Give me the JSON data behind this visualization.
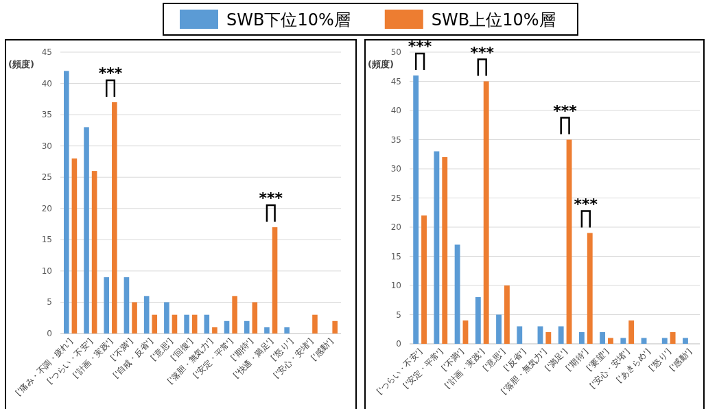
{
  "chart_data": [
    {
      "type": "bar",
      "ylabel": "(頻度)",
      "legend": "top",
      "grid": "y",
      "ylim": [
        0,
        45
      ],
      "yticks": [
        0,
        5,
        10,
        15,
        20,
        25,
        30,
        35,
        40,
        45
      ],
      "categories": [
        "['痛み・不調・疲れ']",
        "['つらい・不安']",
        "['計画・実践']",
        "['不満']",
        "['自戒・反省']",
        "['意思']",
        "['回復']",
        "['落胆・無気力']",
        "['安定・平常']",
        "['期待']",
        "['快適・満足']",
        "['怒り']",
        "['安心・安堵']",
        "['感動']"
      ],
      "series": [
        {
          "name": "SWB下位10%層",
          "color": "#5b9bd5",
          "values": [
            42,
            33,
            9,
            9,
            6,
            5,
            3,
            3,
            2,
            2,
            1,
            1,
            0,
            0
          ]
        },
        {
          "name": "SWB上位10%層",
          "color": "#ed7d31",
          "values": [
            28,
            26,
            37,
            5,
            3,
            3,
            3,
            1,
            6,
            5,
            17,
            0,
            3,
            2
          ]
        }
      ],
      "annotations": [
        {
          "text": "***",
          "x": "['計画・実践']",
          "y": 37
        },
        {
          "text": "***",
          "x": "['快適・満足']",
          "y": 17
        }
      ]
    },
    {
      "type": "bar",
      "ylabel": "(頻度)",
      "grid": "y",
      "ylim": [
        0,
        50
      ],
      "yticks": [
        0,
        5,
        10,
        15,
        20,
        25,
        30,
        35,
        40,
        45,
        50
      ],
      "categories": [
        "['つらい・不安']",
        "['安定・平常']",
        "['不満']",
        "['計画・実践']",
        "['意思']",
        "['反省']",
        "['落胆・無気力']",
        "['満足']",
        "['期待']",
        "['要望']",
        "['安心・安堵']",
        "['あきらめ']",
        "['怒り']",
        "['感動']"
      ],
      "series": [
        {
          "color": "#5b9bd5",
          "values": [
            46,
            33,
            17,
            8,
            5,
            3,
            3,
            3,
            2,
            2,
            1,
            1,
            1,
            1
          ]
        },
        {
          "color": "#ed7d31",
          "values": [
            22,
            32,
            4,
            45,
            10,
            0,
            2,
            35,
            19,
            1,
            4,
            0,
            2,
            0
          ]
        }
      ],
      "annotations": [
        {
          "text": "***",
          "x": "['つらい・不安']",
          "y": 46
        },
        {
          "text": "***",
          "x": "['計画・実践']",
          "y": 45
        },
        {
          "text": "***",
          "x": "['満足']",
          "y": 35
        },
        {
          "text": "***",
          "x": "['期待']",
          "y": 19
        }
      ]
    }
  ]
}
